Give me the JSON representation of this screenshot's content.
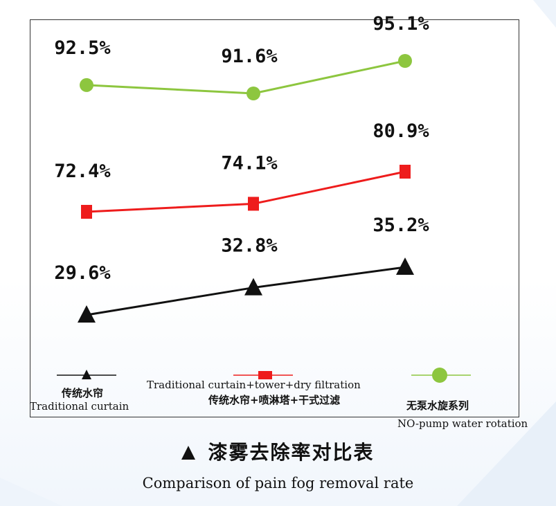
{
  "chart_data": {
    "type": "line",
    "categories": [
      "",
      "",
      ""
    ],
    "series": [
      {
        "name": "无泵水旋系列 NO-pump water rotation",
        "values": [
          92.5,
          91.6,
          95.1
        ],
        "labels": [
          "92.5%",
          "91.6%",
          "95.1%"
        ],
        "color": "#8dc63f",
        "marker": "circle"
      },
      {
        "name": "传统水帘+喷淋塔+干式过滤 Traditional curtain+tower+dry filtration",
        "values": [
          72.4,
          74.1,
          80.9
        ],
        "labels": [
          "72.4%",
          "74.1%",
          "80.9%"
        ],
        "color": "#ee1c1c",
        "marker": "square"
      },
      {
        "name": "传统水帘 Traditional curtain",
        "values": [
          29.6,
          32.8,
          35.2
        ],
        "labels": [
          "29.6%",
          "32.8%",
          "35.2%"
        ],
        "color": "#111111",
        "marker": "triangle"
      }
    ],
    "title": "漆雾去除率对比表",
    "subtitle": "Comparison of pain fog removal rate",
    "grid": false
  },
  "legend": {
    "traditional": {
      "zh": "传统水帘",
      "en": "Traditional curtain"
    },
    "tower": {
      "en": "Traditional curtain+tower+dry filtration",
      "zh": "传统水帘+喷淋塔+干式过滤"
    },
    "nopump": {
      "zh": "无泵水旋系列",
      "en": "NO-pump water rotation"
    }
  },
  "title": {
    "zh": "漆雾去除率对比表",
    "en": "Comparison of pain fog removal rate"
  }
}
